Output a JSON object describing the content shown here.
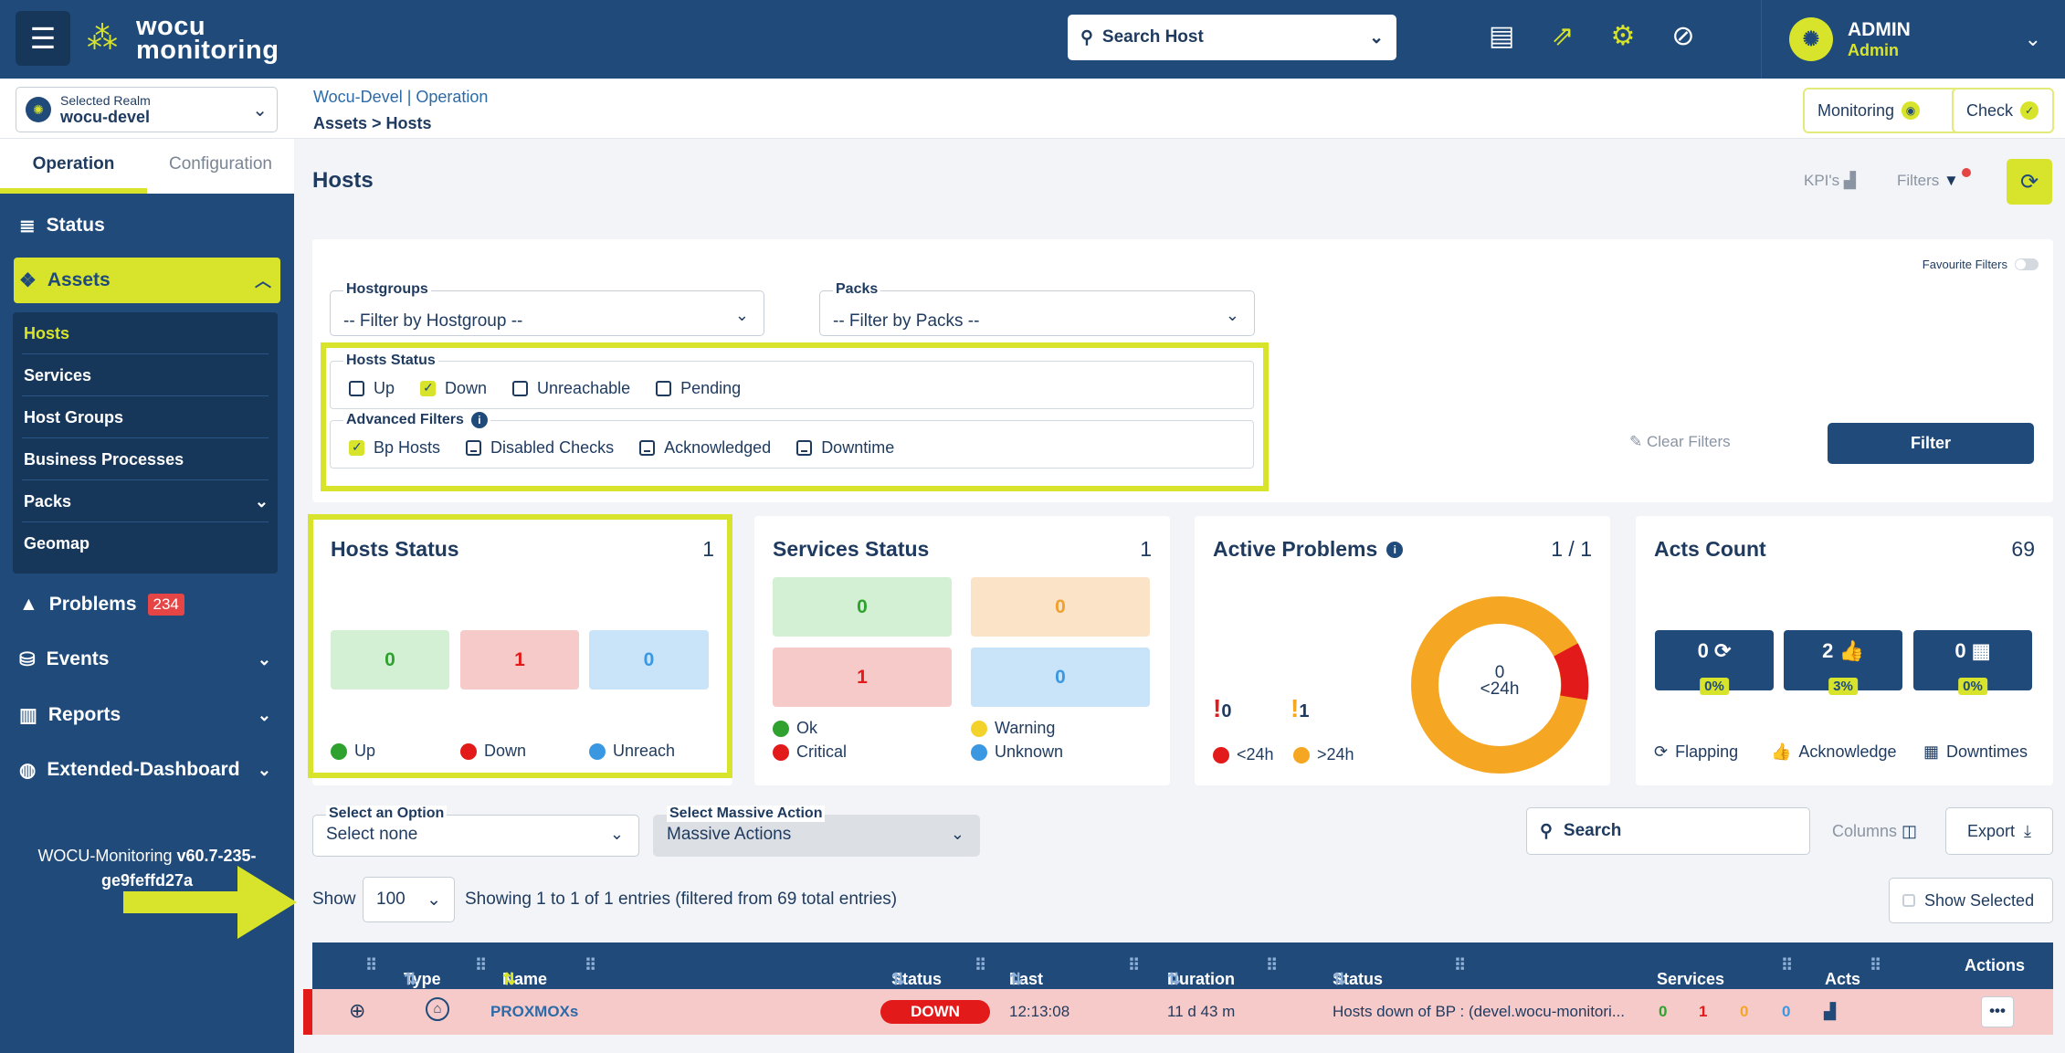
{
  "topbar": {
    "logo_line1": "wocu",
    "logo_line2": "monitoring",
    "search_placeholder": "Search Host",
    "user_name": "ADMIN",
    "user_role": "Admin"
  },
  "subbar": {
    "realm_label": "Selected Realm",
    "realm_value": "wocu-devel",
    "crumb_top": "Wocu-Devel | Operation",
    "crumb_bottom": "Assets > Hosts",
    "monitoring_btn": "Monitoring",
    "check_btn": "Check"
  },
  "sidebar": {
    "tabs": [
      "Operation",
      "Configuration"
    ],
    "status": "Status",
    "assets": "Assets",
    "sub": [
      "Hosts",
      "Services",
      "Host Groups",
      "Business Processes",
      "Packs",
      "Geomap"
    ],
    "problems": "Problems",
    "problems_count": "234",
    "events": "Events",
    "reports": "Reports",
    "extended": "Extended-Dashboard",
    "version_prefix": "WOCU-Monitoring",
    "version": "v60.7-235-",
    "version2": "ge9feffd27a"
  },
  "page": {
    "title": "Hosts",
    "kpis": "KPI's",
    "filters": "Filters"
  },
  "filters": {
    "favourite": "Favourite Filters",
    "hostgroups_label": "Hostgroups",
    "hostgroups_value": "-- Filter by Hostgroup --",
    "packs_label": "Packs",
    "packs_value": "-- Filter by Packs --",
    "hosts_status_label": "Hosts Status",
    "status_opts": [
      "Up",
      "Down",
      "Unreachable",
      "Pending"
    ],
    "advanced_label": "Advanced Filters",
    "advanced_opts": [
      "Bp Hosts",
      "Disabled Checks",
      "Acknowledged",
      "Downtime"
    ],
    "clear": "Clear Filters",
    "filter_btn": "Filter"
  },
  "cards": {
    "hosts": {
      "title": "Hosts Status",
      "count": "1",
      "up": "0",
      "down": "1",
      "unreach": "0",
      "l_up": "Up",
      "l_down": "Down",
      "l_unreach": "Unreach"
    },
    "services": {
      "title": "Services Status",
      "count": "1",
      "ok": "0",
      "warning": "0",
      "critical": "1",
      "unknown": "0",
      "l_ok": "Ok",
      "l_warning": "Warning",
      "l_critical": "Critical",
      "l_unknown": "Unknown"
    },
    "problems": {
      "title": "Active Problems",
      "count": "1 / 1",
      "lt24": "0",
      "gt24": "1",
      "center_value": "0",
      "center_label": "<24h",
      "l_lt": "<24h",
      "l_gt": ">24h"
    },
    "acts": {
      "title": "Acts Count",
      "count": "69",
      "flapping": "0",
      "flapping_pct": "0%",
      "ack": "2",
      "ack_pct": "3%",
      "downtime": "0",
      "downtime_pct": "0%",
      "l_flapping": "Flapping",
      "l_ack": "Acknowledge",
      "l_downtimes": "Downtimes"
    }
  },
  "tools": {
    "option_label": "Select an Option",
    "option_value": "Select none",
    "massive_label": "Select Massive Action",
    "massive_value": "Massive Actions",
    "search": "Search",
    "columns": "Columns",
    "export": "Export",
    "show": "Show",
    "show_value": "100",
    "entries": "Showing 1 to 1 of 1 entries (filtered from 69 total entries)",
    "show_selected": "Show Selected"
  },
  "table": {
    "headers": [
      "Type",
      "Name",
      "Status",
      "Last Check",
      "Duration",
      "Status Info",
      "Services States",
      "Acts",
      "Actions"
    ],
    "row": {
      "name": "PROXMOXs",
      "status": "DOWN",
      "last_check": "12:13:08",
      "duration": "11 d 43 m",
      "info": "Hosts down of BP : (devel.wocu-monitori...",
      "s_ok": "0",
      "s_crit": "1",
      "s_warn": "0",
      "s_unk": "0"
    }
  },
  "colors": {
    "brand": "#1f4a7a",
    "accent": "#d8e42b",
    "down": "#e21a1a"
  }
}
